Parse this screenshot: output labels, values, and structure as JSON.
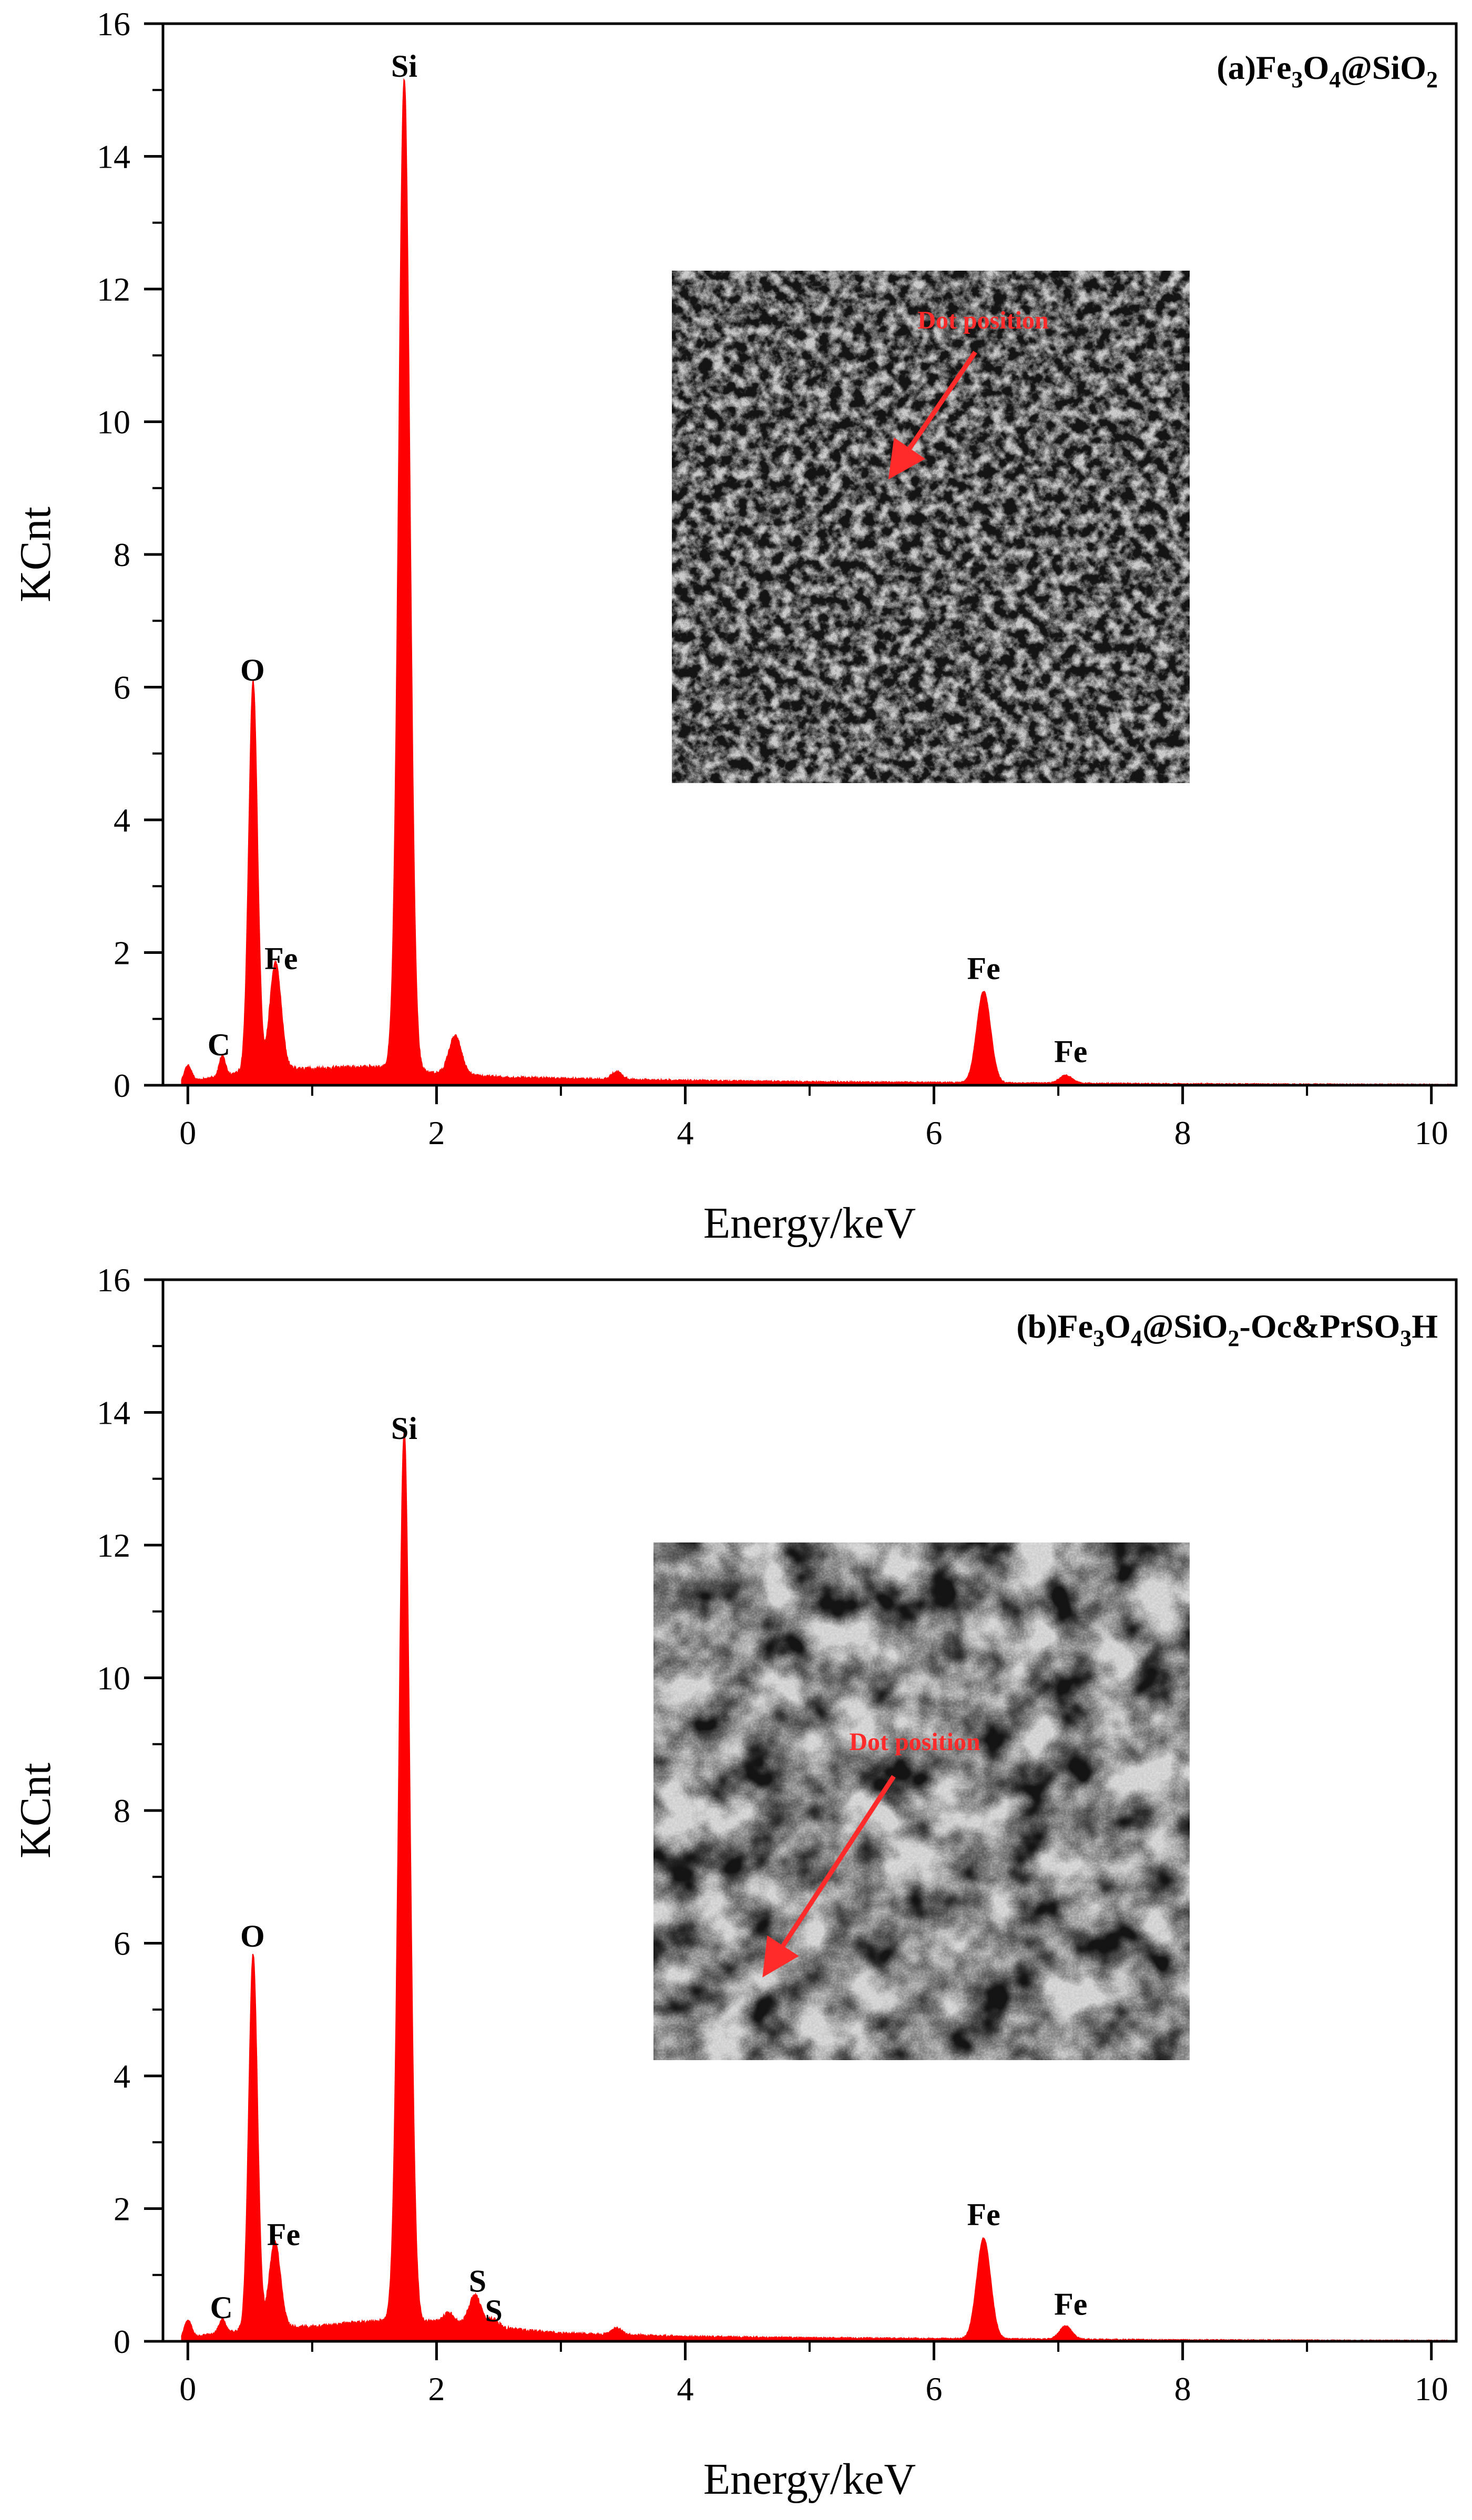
{
  "chart_data": [
    {
      "type": "area",
      "panel": "a",
      "title_parts": [
        {
          "t": "(a)Fe"
        },
        {
          "t": "3",
          "sub": true
        },
        {
          "t": "O"
        },
        {
          "t": "4",
          "sub": true
        },
        {
          "t": "@SiO"
        },
        {
          "t": "2",
          "sub": true
        }
      ],
      "xlabel": "Energy/keV",
      "ylabel": "KCnt",
      "xlim": [
        -0.2,
        10.2
      ],
      "ylim": [
        0,
        16
      ],
      "xticks": [
        0,
        2,
        4,
        6,
        8,
        10
      ],
      "yticks": [
        0,
        2,
        4,
        6,
        8,
        10,
        12,
        14,
        16
      ],
      "series_color": "#ff0000",
      "baseline": [
        [
          -0.05,
          0.02
        ],
        [
          0.15,
          0.1
        ],
        [
          0.6,
          0.25
        ],
        [
          1.0,
          0.25
        ],
        [
          1.5,
          0.28
        ],
        [
          2.0,
          0.18
        ],
        [
          2.5,
          0.12
        ],
        [
          3.0,
          0.1
        ],
        [
          4.0,
          0.07
        ],
        [
          5.0,
          0.05
        ],
        [
          6.0,
          0.04
        ],
        [
          7.0,
          0.03
        ],
        [
          8.0,
          0.02
        ],
        [
          9.0,
          0.015
        ],
        [
          10.2,
          0.01
        ]
      ],
      "peaks": [
        {
          "element": "",
          "x": 0.0,
          "height": 0.26,
          "width": 0.03
        },
        {
          "element": "C",
          "x": 0.277,
          "height": 0.3,
          "width": 0.025
        },
        {
          "element": "O",
          "x": 0.525,
          "height": 5.85,
          "width": 0.035
        },
        {
          "element": "Fe",
          "x": 0.705,
          "height": 1.6,
          "width": 0.045
        },
        {
          "element": "Si",
          "x": 1.74,
          "height": 14.95,
          "width": 0.045
        },
        {
          "element": "",
          "x": 2.15,
          "height": 0.58,
          "width": 0.05
        },
        {
          "element": "",
          "x": 3.45,
          "height": 0.12,
          "width": 0.04
        },
        {
          "element": "Fe",
          "x": 6.4,
          "height": 1.38,
          "width": 0.055
        },
        {
          "element": "Fe",
          "x": 7.06,
          "height": 0.12,
          "width": 0.05
        }
      ],
      "labels": [
        {
          "text": "C",
          "x": 0.25,
          "y": 0.45
        },
        {
          "text": "O",
          "x": 0.52,
          "y": 6.1
        },
        {
          "text": "Fe",
          "x": 0.75,
          "y": 1.75
        },
        {
          "text": "Si",
          "x": 1.74,
          "y": 15.2
        },
        {
          "text": "Fe",
          "x": 6.4,
          "y": 1.6
        },
        {
          "text": "Fe",
          "x": 7.1,
          "y": 0.35
        }
      ],
      "inset": {
        "label": "Dot position"
      }
    },
    {
      "type": "area",
      "panel": "b",
      "title_parts": [
        {
          "t": "(b)Fe"
        },
        {
          "t": "3",
          "sub": true
        },
        {
          "t": "O"
        },
        {
          "t": "4",
          "sub": true
        },
        {
          "t": "@SiO"
        },
        {
          "t": "2",
          "sub": true
        },
        {
          "t": "-Oc&PrSO"
        },
        {
          "t": "3",
          "sub": true
        },
        {
          "t": "H"
        }
      ],
      "xlabel": "Energy/keV",
      "ylabel": "KCnt",
      "xlim": [
        -0.2,
        10.2
      ],
      "ylim": [
        0,
        16
      ],
      "xticks": [
        0,
        2,
        4,
        6,
        8,
        10
      ],
      "yticks": [
        0,
        2,
        4,
        6,
        8,
        10,
        12,
        14,
        16
      ],
      "series_color": "#ff0000",
      "baseline": [
        [
          -0.05,
          0.02
        ],
        [
          0.15,
          0.1
        ],
        [
          0.6,
          0.2
        ],
        [
          1.0,
          0.22
        ],
        [
          1.5,
          0.3
        ],
        [
          2.0,
          0.3
        ],
        [
          2.5,
          0.2
        ],
        [
          3.0,
          0.12
        ],
        [
          4.0,
          0.07
        ],
        [
          5.0,
          0.05
        ],
        [
          6.0,
          0.04
        ],
        [
          7.0,
          0.03
        ],
        [
          8.0,
          0.02
        ],
        [
          9.0,
          0.015
        ],
        [
          10.2,
          0.01
        ]
      ],
      "peaks": [
        {
          "element": "",
          "x": 0.0,
          "height": 0.28,
          "width": 0.03
        },
        {
          "element": "C",
          "x": 0.277,
          "height": 0.2,
          "width": 0.025
        },
        {
          "element": "O",
          "x": 0.525,
          "height": 5.65,
          "width": 0.035
        },
        {
          "element": "Fe",
          "x": 0.7,
          "height": 1.3,
          "width": 0.045
        },
        {
          "element": "Si",
          "x": 1.74,
          "height": 13.4,
          "width": 0.045
        },
        {
          "element": "",
          "x": 2.1,
          "height": 0.15,
          "width": 0.04
        },
        {
          "element": "S",
          "x": 2.31,
          "height": 0.45,
          "width": 0.05
        },
        {
          "element": "S",
          "x": 2.46,
          "height": 0.12,
          "width": 0.04
        },
        {
          "element": "",
          "x": 3.45,
          "height": 0.1,
          "width": 0.04
        },
        {
          "element": "Fe",
          "x": 6.4,
          "height": 1.52,
          "width": 0.055
        },
        {
          "element": "Fe",
          "x": 7.06,
          "height": 0.2,
          "width": 0.05
        }
      ],
      "labels": [
        {
          "text": "C",
          "x": 0.27,
          "y": 0.35
        },
        {
          "text": "O",
          "x": 0.52,
          "y": 5.95
        },
        {
          "text": "Fe",
          "x": 0.77,
          "y": 1.45
        },
        {
          "text": "Si",
          "x": 1.74,
          "y": 13.6
        },
        {
          "text": "S",
          "x": 2.33,
          "y": 0.75
        },
        {
          "text": "S",
          "x": 2.46,
          "y": 0.3
        },
        {
          "text": "Fe",
          "x": 6.4,
          "y": 1.75
        },
        {
          "text": "Fe",
          "x": 7.1,
          "y": 0.4
        }
      ],
      "inset": {
        "label": "Dot position"
      }
    }
  ]
}
